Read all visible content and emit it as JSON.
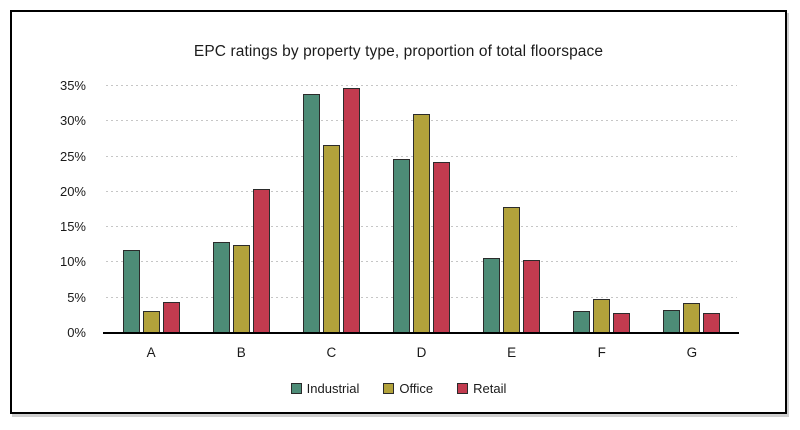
{
  "frame": {
    "background": "#ffffff",
    "border_color": "#000000"
  },
  "chart_data": {
    "type": "bar",
    "title": "EPC ratings by property type, proportion of total floorspace",
    "categories": [
      "A",
      "B",
      "C",
      "D",
      "E",
      "F",
      "G"
    ],
    "series": [
      {
        "name": "Industrial",
        "color": "#4D8C77",
        "values": [
          11.7,
          12.9,
          33.9,
          24.6,
          10.7,
          3.1,
          3.2
        ]
      },
      {
        "name": "Office",
        "color": "#B2A23B",
        "values": [
          3.1,
          12.5,
          26.6,
          31.0,
          17.8,
          4.8,
          4.3
        ]
      },
      {
        "name": "Retail",
        "color": "#C23B4F",
        "values": [
          4.4,
          20.4,
          34.7,
          24.3,
          10.4,
          2.9,
          2.8
        ]
      }
    ],
    "xlabel": "",
    "ylabel": "",
    "ylim": [
      0,
      35
    ],
    "ytick_step": 5,
    "ytick_labels": [
      "0%",
      "5%",
      "10%",
      "15%",
      "20%",
      "25%",
      "30%",
      "35%"
    ],
    "grid": "horizontal-dotted",
    "gridline_color": "#c6c6c6",
    "axis_color": "#000000",
    "bar_outline_color": "#2b2b2b",
    "legend_position": "bottom"
  }
}
